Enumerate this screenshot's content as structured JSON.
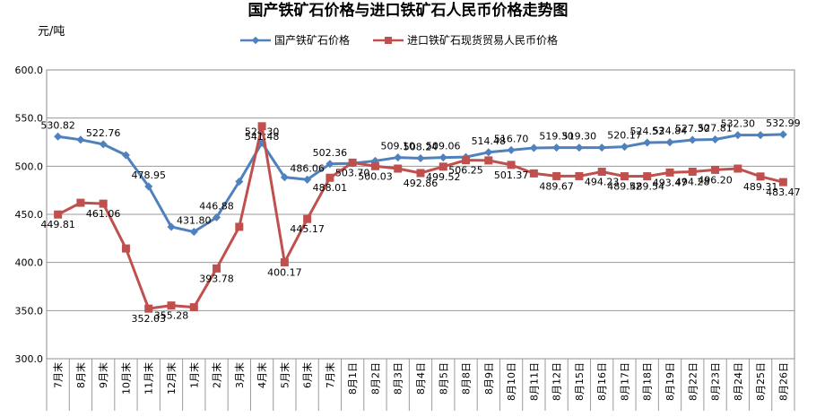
{
  "chart_data": {
    "type": "line",
    "title": "国产铁矿石价格与进口铁矿石人民币价格走势图",
    "unit_label": "元/吨",
    "ylim": [
      300,
      600
    ],
    "yticks": [
      "300.0",
      "350.0",
      "400.0",
      "450.0",
      "500.0",
      "550.0",
      "600.0"
    ],
    "grid": true,
    "legend_position": "top",
    "categories": [
      "7月末",
      "8月末",
      "9月末",
      "10月末",
      "11月末",
      "12月末",
      "1月末",
      "2月末",
      "3月末",
      "4月末",
      "5月末",
      "6月末",
      "7月末",
      "8月1日",
      "8月2日",
      "8月3日",
      "8月4日",
      "8月5日",
      "8月8日",
      "8月9日",
      "8月10日",
      "8月11日",
      "8月12日",
      "8月15日",
      "8月16日",
      "8月17日",
      "8月18日",
      "8月19日",
      "8月22日",
      "8月23日",
      "8月24日",
      "8月25日",
      "8月26日"
    ],
    "series": [
      {
        "name": "国产铁矿石价格",
        "color": "#4F81BD",
        "marker": "diamond",
        "values": [
          530.82,
          527.5,
          522.76,
          511.5,
          478.95,
          437.0,
          431.8,
          446.88,
          484.0,
          524.3,
          488.5,
          486.06,
          502.36,
          503.0,
          505.5,
          509.1,
          508.24,
          509.06,
          509.5,
          514.48,
          516.7,
          519.0,
          519.3,
          519.3,
          519.3,
          520.17,
          524.53,
          524.84,
          527.3,
          527.81,
          532.3,
          532.3,
          532.99
        ],
        "labels": [
          "530.82",
          "",
          "522.76",
          "",
          "478.95",
          "",
          "431.80",
          "446.88",
          "",
          "524.30",
          "",
          "486.06",
          "502.36",
          "",
          "",
          "509.10",
          "508.24",
          "509.06",
          "",
          "514.48",
          "516.70",
          "",
          "519.30",
          "519.30",
          "",
          "520.17",
          "524.53",
          "524.84",
          "527.30",
          "527.81",
          "532.30",
          "",
          "532.99"
        ]
      },
      {
        "name": "进口铁矿石现货贸易人民币价格",
        "color": "#C0504D",
        "marker": "square",
        "values": [
          449.81,
          462.0,
          461.06,
          414.5,
          352.03,
          355.28,
          353.5,
          393.78,
          437.0,
          541.48,
          400.17,
          445.17,
          488.01,
          503.7,
          500.03,
          497.5,
          492.86,
          499.52,
          506.25,
          506.0,
          501.37,
          492.5,
          489.67,
          489.67,
          494.23,
          489.52,
          489.54,
          493.47,
          494.28,
          496.2,
          497.5,
          489.31,
          483.47
        ],
        "labels": [
          "449.81",
          "",
          "461.06",
          "",
          "352.03",
          "355.28",
          "",
          "393.78",
          "",
          "541.48",
          "400.17",
          "445.17",
          "488.01",
          "503.70",
          "500.03",
          "",
          "492.86",
          "499.52",
          "506.25",
          "",
          "501.37",
          "",
          "489.67",
          "",
          "494.23",
          "489.52",
          "489.54",
          "493.47",
          "494.28",
          "496.20",
          "",
          "489.31",
          "483.47"
        ]
      }
    ]
  }
}
